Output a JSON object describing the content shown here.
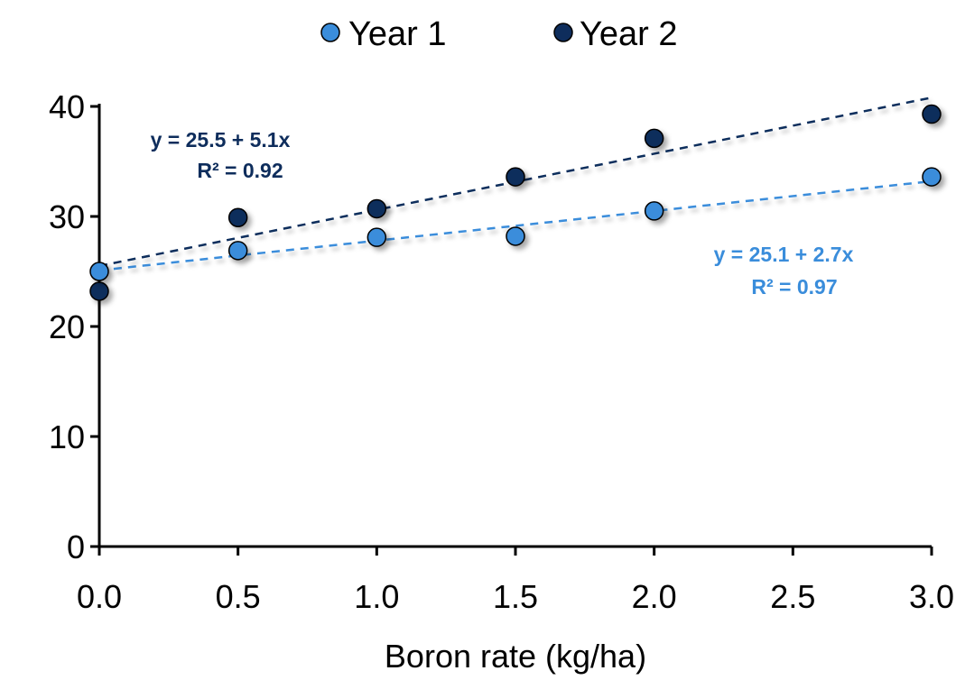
{
  "chart_data": {
    "type": "scatter",
    "xlabel": "Boron rate (kg/ha)",
    "ylabel": "",
    "xlim": [
      0,
      3
    ],
    "ylim": [
      0,
      40
    ],
    "xticks": [
      "0.0",
      "0.5",
      "1.0",
      "1.5",
      "2.0",
      "2.5",
      "3.0"
    ],
    "yticks": [
      "0",
      "10",
      "20",
      "30",
      "40"
    ],
    "grid": false,
    "legend_position": "top-center",
    "series": [
      {
        "name": "Year 1",
        "color": "#3a8ddb",
        "x": [
          0.0,
          0.5,
          1.0,
          1.5,
          2.0,
          3.0
        ],
        "y": [
          25.0,
          26.9,
          28.1,
          28.2,
          30.5,
          33.6
        ],
        "trendline": {
          "intercept": 25.1,
          "slope": 2.7,
          "equation": "y = 25.1 + 2.7x",
          "r2": "R² = 0.97"
        }
      },
      {
        "name": "Year 2",
        "color": "#0e2d5c",
        "x": [
          0.0,
          0.5,
          1.0,
          1.5,
          2.0,
          3.0
        ],
        "y": [
          23.2,
          29.9,
          30.7,
          33.6,
          37.1,
          39.3
        ],
        "trendline": {
          "intercept": 25.5,
          "slope": 5.1,
          "equation": "y = 25.5 + 5.1x",
          "r2": "R² = 0.92"
        }
      }
    ]
  }
}
